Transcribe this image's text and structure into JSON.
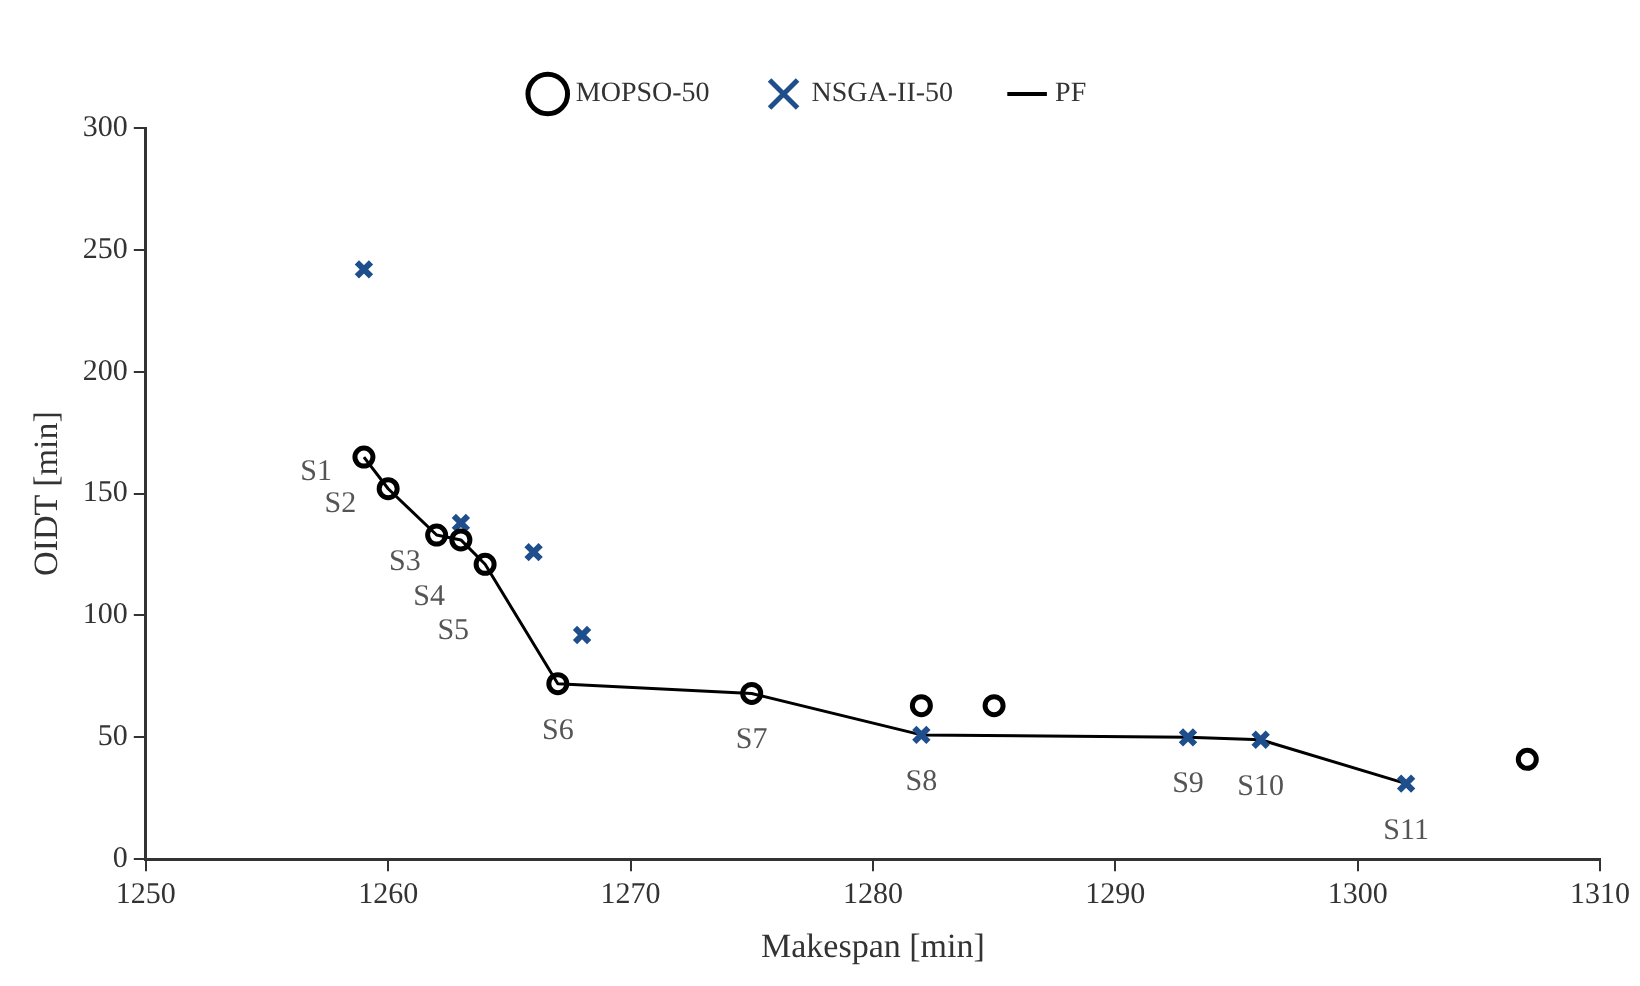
{
  "chart_data": {
    "type": "scatter",
    "xlabel": "Makespan [min]",
    "ylabel": "OIDT [min]",
    "xlim": [
      1250,
      1310
    ],
    "xticks": [
      1250,
      1260,
      1270,
      1280,
      1290,
      1300,
      1310
    ],
    "ylim": [
      0,
      300
    ],
    "yticks": [
      0,
      50,
      100,
      150,
      200,
      250,
      300
    ],
    "grid": false,
    "legend": "top",
    "series": [
      {
        "name": "MOPSO-50",
        "marker": "circle",
        "color": "#000000",
        "x": [
          1259,
          1260,
          1262,
          1263,
          1264,
          1267,
          1275,
          1282,
          1285,
          1307
        ],
        "values": [
          165,
          152,
          133,
          131,
          121,
          72,
          68,
          63,
          63,
          41
        ]
      },
      {
        "name": "NSGA-II-50",
        "marker": "cross",
        "color": "#1f4e8c",
        "x": [
          1259,
          1263,
          1266,
          1268,
          1282,
          1293,
          1296,
          1302
        ],
        "values": [
          242,
          138,
          126,
          92,
          51,
          50,
          49,
          31
        ]
      },
      {
        "name": "PF",
        "type": "line",
        "marker": "none",
        "line_style": "solid",
        "color": "#000000",
        "x": [
          1259,
          1260,
          1262,
          1263,
          1264,
          1267,
          1275,
          1282,
          1293,
          1296,
          1302
        ],
        "values": [
          165,
          152,
          133,
          131,
          121,
          72,
          68,
          51,
          50,
          49,
          31
        ]
      }
    ],
    "annotations": [
      {
        "text": "S1",
        "x": 1259,
        "y": 165
      },
      {
        "text": "S2",
        "x": 1260,
        "y": 152
      },
      {
        "text": "S3",
        "x": 1262,
        "y": 133
      },
      {
        "text": "S4",
        "x": 1263,
        "y": 131
      },
      {
        "text": "S5",
        "x": 1264,
        "y": 121
      },
      {
        "text": "S6",
        "x": 1267,
        "y": 72
      },
      {
        "text": "S7",
        "x": 1275,
        "y": 68
      },
      {
        "text": "S8",
        "x": 1282,
        "y": 51
      },
      {
        "text": "S9",
        "x": 1293,
        "y": 50
      },
      {
        "text": "S10",
        "x": 1296,
        "y": 49
      },
      {
        "text": "S11",
        "x": 1302,
        "y": 31
      }
    ]
  }
}
